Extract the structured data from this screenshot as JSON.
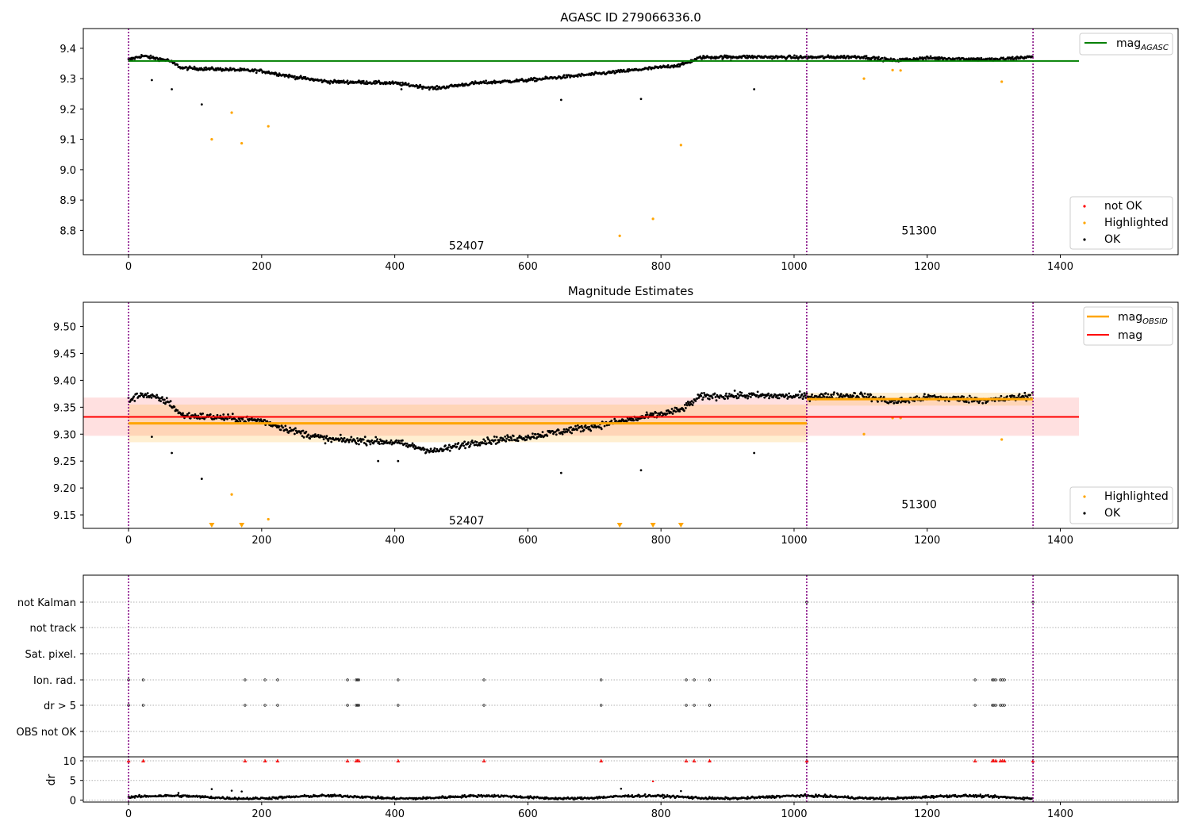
{
  "chart_data": [
    {
      "type": "scatter",
      "title": "AGASC ID 279066336.0",
      "xlim": [
        -68,
        1577
      ],
      "ylim": [
        8.72,
        9.465
      ],
      "xticks": [
        0,
        200,
        400,
        600,
        800,
        1000,
        1200,
        1400
      ],
      "yticks": [
        8.8,
        8.9,
        9.0,
        9.1,
        9.2,
        9.3,
        9.4
      ],
      "xtick_labels": [
        "0",
        "200",
        "400",
        "600",
        "800",
        "1000",
        "1200",
        "1400"
      ],
      "ytick_labels": [
        "8.8",
        "8.9",
        "9.0",
        "9.1",
        "9.2",
        "9.3",
        "9.4"
      ],
      "obs_boundaries": [
        0,
        1019,
        1359
      ],
      "obs_labels": [
        {
          "text": "52407",
          "x": 508,
          "y": 8.75
        },
        {
          "text": "51300",
          "x": 1188,
          "y": 8.8
        }
      ],
      "reference_line": {
        "name": "mag",
        "sub": "AGASC",
        "y": 9.358,
        "x_range": [
          0,
          1428
        ],
        "color": "#008000"
      },
      "ok_trend": [
        [
          0,
          9.362
        ],
        [
          20,
          9.375
        ],
        [
          60,
          9.36
        ],
        [
          80,
          9.335
        ],
        [
          150,
          9.33
        ],
        [
          200,
          9.325
        ],
        [
          250,
          9.305
        ],
        [
          300,
          9.29
        ],
        [
          350,
          9.288
        ],
        [
          400,
          9.285
        ],
        [
          460,
          9.268
        ],
        [
          520,
          9.285
        ],
        [
          600,
          9.295
        ],
        [
          700,
          9.315
        ],
        [
          790,
          9.335
        ],
        [
          830,
          9.345
        ],
        [
          860,
          9.37
        ],
        [
          920,
          9.372
        ],
        [
          1019,
          9.37
        ],
        [
          1100,
          9.372
        ],
        [
          1150,
          9.36
        ],
        [
          1200,
          9.368
        ],
        [
          1300,
          9.363
        ],
        [
          1359,
          9.372
        ]
      ],
      "ok_outliers": [
        [
          35,
          9.295
        ],
        [
          65,
          9.265
        ],
        [
          110,
          9.215
        ],
        [
          770,
          9.233
        ],
        [
          650,
          9.23
        ],
        [
          940,
          9.265
        ],
        [
          410,
          9.265
        ],
        [
          905,
          9.36
        ]
      ],
      "highlighted": [
        [
          125,
          9.1
        ],
        [
          155,
          9.188
        ],
        [
          170,
          9.087
        ],
        [
          210,
          9.143
        ],
        [
          738,
          8.782
        ],
        [
          788,
          8.838
        ],
        [
          830,
          9.081
        ],
        [
          1105,
          9.3
        ],
        [
          1148,
          9.328
        ],
        [
          1160,
          9.327
        ],
        [
          1312,
          9.29
        ]
      ],
      "legend_top": [
        {
          "label": "mag",
          "sub": "AGASC",
          "color": "#008000"
        }
      ],
      "legend_bottom": [
        {
          "label": "not OK",
          "color": "#ff0000"
        },
        {
          "label": "Highlighted",
          "color": "#ffa500"
        },
        {
          "label": "OK",
          "color": "#000000"
        }
      ]
    },
    {
      "type": "scatter",
      "title": "Magnitude Estimates",
      "xlim": [
        -68,
        1577
      ],
      "ylim": [
        9.125,
        9.545
      ],
      "xticks": [
        0,
        200,
        400,
        600,
        800,
        1000,
        1200,
        1400
      ],
      "yticks": [
        9.15,
        9.2,
        9.25,
        9.3,
        9.35,
        9.4,
        9.45,
        9.5
      ],
      "xtick_labels": [
        "0",
        "200",
        "400",
        "600",
        "800",
        "1000",
        "1200",
        "1400"
      ],
      "ytick_labels": [
        "9.15",
        "9.20",
        "9.25",
        "9.30",
        "9.35",
        "9.40",
        "9.45",
        "9.50"
      ],
      "obs_boundaries": [
        0,
        1019,
        1359
      ],
      "obs_labels": [
        {
          "text": "52407",
          "x": 508,
          "y": 9.14
        },
        {
          "text": "51300",
          "x": 1188,
          "y": 9.17
        }
      ],
      "mag_line": {
        "name": "mag",
        "y": 9.332,
        "band": [
          9.297,
          9.368
        ],
        "x_range": [
          -68,
          1428
        ],
        "color": "#ff0000"
      },
      "mag_obsid_segments": [
        {
          "x_range": [
            0,
            1019
          ],
          "y": 9.32,
          "band": [
            9.285,
            9.355
          ]
        },
        {
          "x_range": [
            1019,
            1359
          ],
          "y": 9.365,
          "band": [
            9.353,
            9.377
          ]
        }
      ],
      "ok_trend": [
        [
          0,
          9.362
        ],
        [
          20,
          9.375
        ],
        [
          60,
          9.36
        ],
        [
          80,
          9.335
        ],
        [
          150,
          9.33
        ],
        [
          200,
          9.325
        ],
        [
          250,
          9.305
        ],
        [
          300,
          9.29
        ],
        [
          350,
          9.288
        ],
        [
          400,
          9.285
        ],
        [
          460,
          9.268
        ],
        [
          520,
          9.285
        ],
        [
          600,
          9.295
        ],
        [
          700,
          9.315
        ],
        [
          790,
          9.335
        ],
        [
          830,
          9.345
        ],
        [
          860,
          9.37
        ],
        [
          920,
          9.372
        ],
        [
          1019,
          9.37
        ],
        [
          1100,
          9.372
        ],
        [
          1150,
          9.36
        ],
        [
          1200,
          9.368
        ],
        [
          1300,
          9.363
        ],
        [
          1359,
          9.372
        ]
      ],
      "ok_outliers": [
        [
          35,
          9.295
        ],
        [
          65,
          9.265
        ],
        [
          110,
          9.217
        ],
        [
          770,
          9.233
        ],
        [
          650,
          9.228
        ],
        [
          940,
          9.265
        ],
        [
          375,
          9.25
        ],
        [
          405,
          9.25
        ]
      ],
      "highlighted": [
        [
          155,
          9.188
        ],
        [
          210,
          9.142
        ],
        [
          1105,
          9.3
        ],
        [
          1148,
          9.33
        ],
        [
          1160,
          9.33
        ],
        [
          1312,
          9.29
        ]
      ],
      "below_range_markers": [
        125,
        170,
        738,
        788,
        830
      ],
      "legend_top": [
        {
          "label": "mag",
          "sub": "OBSID",
          "color": "#ffa500"
        },
        {
          "label": "mag",
          "sub": "",
          "color": "#ff0000"
        }
      ],
      "legend_bottom": [
        {
          "label": "Highlighted",
          "color": "#ffa500"
        },
        {
          "label": "OK",
          "color": "#000000"
        }
      ]
    },
    {
      "type": "scatter",
      "title": "",
      "xlim": [
        -68,
        1577
      ],
      "xticks": [
        0,
        200,
        400,
        600,
        800,
        1000,
        1200,
        1400
      ],
      "xtick_labels": [
        "0",
        "200",
        "400",
        "600",
        "800",
        "1000",
        "1200",
        "1400"
      ],
      "obs_boundaries": [
        0,
        1019,
        1359
      ],
      "flag_rows": [
        "not Kalman",
        "not track",
        "Sat. pixel.",
        "Ion. rad.",
        "dr > 5",
        "OBS not OK"
      ],
      "flag_points": {
        "not Kalman": [
          1019,
          1359
        ],
        "not track": [],
        "Sat. pixel.": [],
        "Ion. rad.": [
          0,
          22,
          175,
          205,
          224,
          329,
          342,
          344,
          346,
          405,
          534,
          710,
          838,
          850,
          873,
          1272,
          1298,
          1300,
          1303,
          1310,
          1313,
          1316
        ],
        "dr > 5": [
          0,
          22,
          175,
          205,
          224,
          329,
          342,
          344,
          346,
          405,
          534,
          710,
          838,
          850,
          873,
          1272,
          1298,
          1300,
          1303,
          1310,
          1313,
          1316
        ],
        "OBS not OK": []
      },
      "dr_panel": {
        "ylabel": "dr",
        "ylim": [
          -0.5,
          11
        ],
        "yticks": [
          0,
          5,
          10
        ],
        "ytick_labels": [
          "0",
          "5",
          "10"
        ],
        "clipped_high_x": [
          0,
          22,
          175,
          205,
          224,
          329,
          342,
          344,
          346,
          405,
          534,
          710,
          838,
          850,
          873,
          1019,
          1272,
          1298,
          1300,
          1303,
          1310,
          1313,
          1316,
          1359
        ],
        "outliers": [
          [
            75,
            1.8
          ],
          [
            125,
            2.8
          ],
          [
            155,
            2.4
          ],
          [
            170,
            2.2
          ],
          [
            740,
            2.9
          ],
          [
            788,
            4.8
          ],
          [
            830,
            2.3
          ]
        ]
      }
    }
  ]
}
